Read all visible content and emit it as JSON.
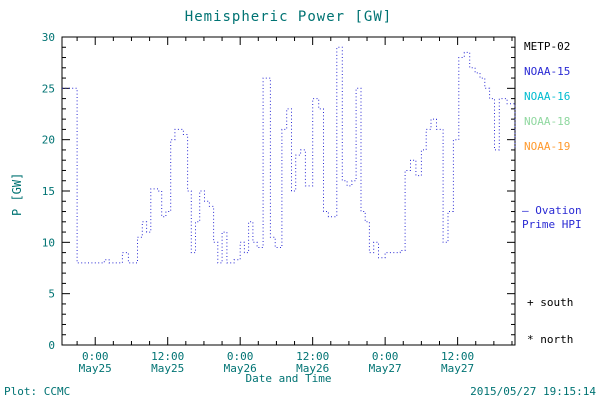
{
  "title": "Hemispheric Power [GW]",
  "colors": {
    "background": "#ffffff",
    "text": "#007373",
    "axis": "#000000",
    "line": "#2a2ad4"
  },
  "chart_data": {
    "type": "line",
    "step": true,
    "line_style": "dotted",
    "title": "Hemispheric Power [GW]",
    "xlabel": "Date and Time",
    "ylabel": "P [GW]",
    "ylim": [
      0,
      30
    ],
    "y_ticks": [
      0,
      5,
      10,
      15,
      20,
      25,
      30
    ],
    "y_minor_step": 1,
    "xlim_hours": [
      -5.5,
      69.5
    ],
    "x_ticks": [
      {
        "t": 0,
        "time": "0:00",
        "date": "May25"
      },
      {
        "t": 12,
        "time": "12:00",
        "date": "May25"
      },
      {
        "t": 24,
        "time": "0:00",
        "date": "May26"
      },
      {
        "t": 36,
        "time": "12:00",
        "date": "May26"
      },
      {
        "t": 48,
        "time": "0:00",
        "date": "May27"
      },
      {
        "t": 60,
        "time": "12:00",
        "date": "May27"
      }
    ],
    "x_minor_step": 3,
    "grid": false,
    "legend_position": "right-outside",
    "series": [
      {
        "name": "Ovation Prime HPI",
        "color": "#2a2ad4",
        "units": "GW",
        "points": [
          [
            -5.5,
            25
          ],
          [
            -3.0,
            8
          ],
          [
            1.5,
            8.3
          ],
          [
            2.3,
            8
          ],
          [
            4.5,
            9
          ],
          [
            5.5,
            8
          ],
          [
            7.0,
            10.5
          ],
          [
            7.8,
            12
          ],
          [
            8.5,
            11
          ],
          [
            9.2,
            15.2
          ],
          [
            10.5,
            15
          ],
          [
            11.0,
            12.5
          ],
          [
            11.7,
            13
          ],
          [
            12.5,
            20
          ],
          [
            13.2,
            21
          ],
          [
            14.6,
            20.5
          ],
          [
            15.3,
            15
          ],
          [
            15.9,
            9
          ],
          [
            16.6,
            12
          ],
          [
            17.3,
            15
          ],
          [
            18.1,
            14
          ],
          [
            18.9,
            13.5
          ],
          [
            19.6,
            10
          ],
          [
            20.3,
            8
          ],
          [
            21.0,
            11
          ],
          [
            21.8,
            8
          ],
          [
            23.0,
            8.3
          ],
          [
            24.0,
            10
          ],
          [
            24.7,
            9
          ],
          [
            25.4,
            12
          ],
          [
            26.1,
            10
          ],
          [
            26.8,
            9.5
          ],
          [
            27.8,
            26
          ],
          [
            29.0,
            10.5
          ],
          [
            29.8,
            9.5
          ],
          [
            30.9,
            21
          ],
          [
            31.7,
            23
          ],
          [
            32.5,
            15
          ],
          [
            33.2,
            18.5
          ],
          [
            34.0,
            19
          ],
          [
            34.8,
            15.5
          ],
          [
            36.0,
            24
          ],
          [
            37.0,
            23
          ],
          [
            37.8,
            13
          ],
          [
            38.6,
            12.5
          ],
          [
            40.0,
            29
          ],
          [
            40.9,
            16
          ],
          [
            41.7,
            15.5
          ],
          [
            42.5,
            16
          ],
          [
            43.2,
            25
          ],
          [
            44.0,
            13
          ],
          [
            44.7,
            12
          ],
          [
            45.4,
            9
          ],
          [
            46.1,
            10
          ],
          [
            46.9,
            8.5
          ],
          [
            48.0,
            9
          ],
          [
            50.5,
            9.2
          ],
          [
            51.3,
            17
          ],
          [
            52.2,
            18
          ],
          [
            53.1,
            16.5
          ],
          [
            54.0,
            19
          ],
          [
            54.8,
            21
          ],
          [
            55.6,
            22
          ],
          [
            56.5,
            21
          ],
          [
            57.6,
            10
          ],
          [
            58.4,
            13
          ],
          [
            59.3,
            20
          ],
          [
            60.2,
            28
          ],
          [
            61.1,
            28.5
          ],
          [
            62.0,
            27
          ],
          [
            62.9,
            26.5
          ],
          [
            63.7,
            26
          ],
          [
            64.5,
            25
          ],
          [
            65.3,
            24
          ],
          [
            66.1,
            19
          ],
          [
            66.9,
            24
          ],
          [
            68.2,
            23.5
          ],
          [
            69.5,
            19
          ]
        ]
      }
    ]
  },
  "legend": {
    "satellites": [
      {
        "label": "METP-02",
        "color": "#000000"
      },
      {
        "label": "NOAA-15",
        "color": "#2a2ad4"
      },
      {
        "label": "NOAA-16",
        "color": "#00bcd0"
      },
      {
        "label": "NOAA-18",
        "color": "#90d8a0"
      },
      {
        "label": "NOAA-19",
        "color": "#ff9a2e"
      }
    ],
    "model": {
      "line1": "— Ovation",
      "line2": "Prime HPI",
      "color": "#2a2ad4"
    },
    "markers": [
      {
        "label": "+ south"
      },
      {
        "label": "* north"
      }
    ]
  },
  "footer": {
    "plot_label": "Plot: CCMC",
    "timestamp": "2015/05/27 19:15:14"
  }
}
